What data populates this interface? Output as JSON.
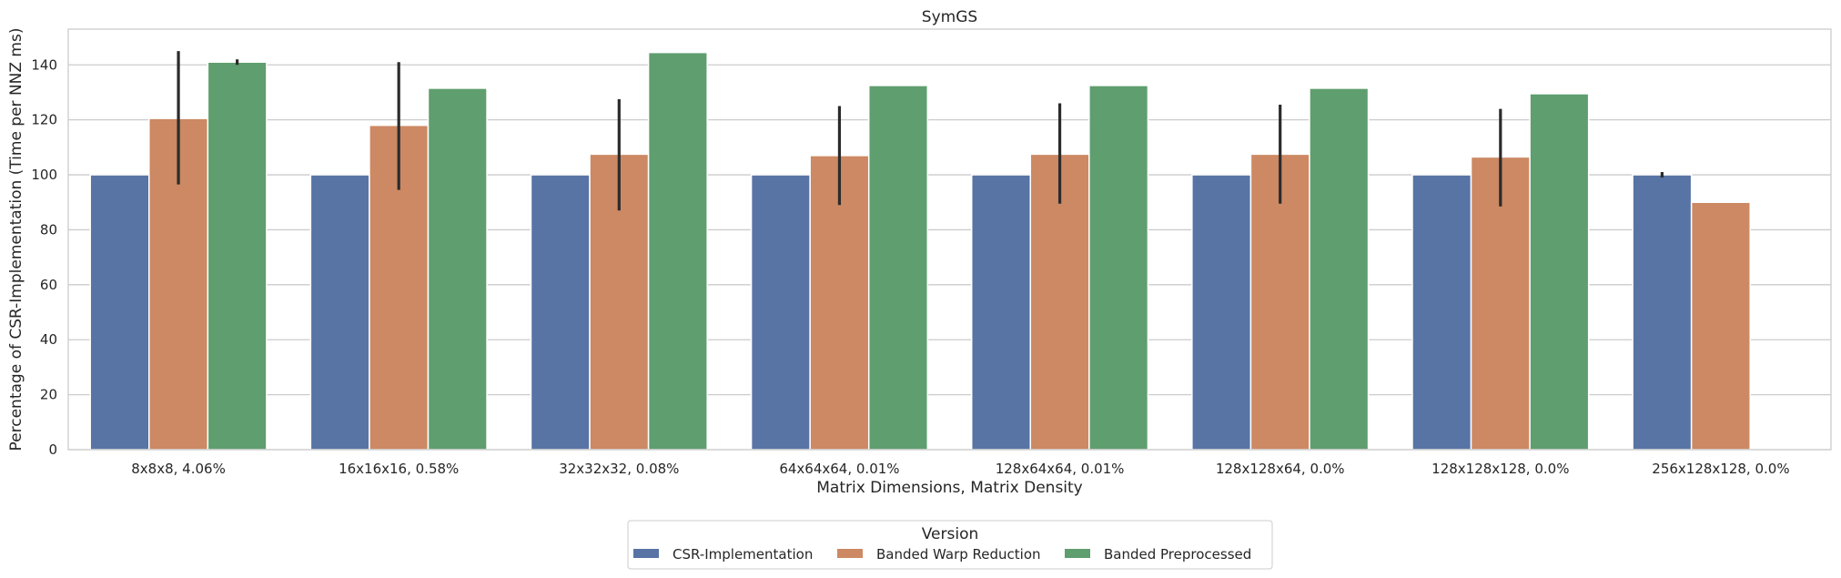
{
  "chart_data": {
    "type": "bar",
    "title": "SymGS",
    "xlabel": "Matrix Dimensions, Matrix Density",
    "ylabel": "Percentage of CSR-Implementation (Time per NNZ ms)",
    "ylim": [
      0,
      153
    ],
    "yticks": [
      0,
      20,
      40,
      60,
      80,
      100,
      120,
      140
    ],
    "grid": true,
    "legend_title": "Version",
    "legend_position": "bottom-center",
    "categories": [
      "8x8x8, 4.06%",
      "16x16x16, 0.58%",
      "32x32x32, 0.08%",
      "64x64x64, 0.01%",
      "128x64x64, 0.01%",
      "128x128x64, 0.0%",
      "128x128x128, 0.0%",
      "256x128x128, 0.0%"
    ],
    "series": [
      {
        "name": "CSR-Implementation",
        "color": "#5874a5",
        "values": [
          100,
          100,
          100,
          100,
          100,
          100,
          100,
          100
        ],
        "error_low": [
          null,
          null,
          null,
          null,
          null,
          null,
          null,
          99
        ],
        "error_high": [
          null,
          null,
          null,
          null,
          null,
          null,
          null,
          101
        ]
      },
      {
        "name": "Banded Warp Reduction",
        "color": "#cc8963",
        "values": [
          120.5,
          118,
          107.5,
          107,
          107.5,
          107.5,
          106.5,
          90
        ],
        "error_low": [
          96.5,
          94.5,
          87,
          89,
          89.5,
          89.5,
          88.5,
          null
        ],
        "error_high": [
          145,
          141,
          127.5,
          125,
          126,
          125.5,
          124,
          null
        ]
      },
      {
        "name": "Banded Preprocessed",
        "color": "#5f9e6e",
        "values": [
          141,
          131.5,
          144.5,
          132.5,
          132.5,
          131.5,
          129.5,
          null
        ],
        "error_low": [
          140,
          null,
          null,
          null,
          null,
          null,
          null,
          null
        ],
        "error_high": [
          142,
          null,
          null,
          null,
          null,
          null,
          null,
          null
        ]
      }
    ]
  }
}
